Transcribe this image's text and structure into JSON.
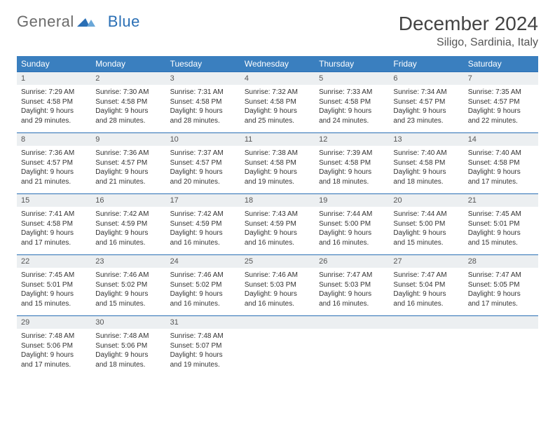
{
  "logo": {
    "word1": "General",
    "word2": "Blue"
  },
  "title": "December 2024",
  "location": "Siligo, Sardinia, Italy",
  "colors": {
    "header_bg": "#3a7fbf",
    "header_text": "#ffffff",
    "daynum_bg": "#eceff1",
    "row_border": "#2a6fb5",
    "body_text": "#333333",
    "logo_gray": "#6b6b6b",
    "logo_blue": "#2a6fb5"
  },
  "day_headers": [
    "Sunday",
    "Monday",
    "Tuesday",
    "Wednesday",
    "Thursday",
    "Friday",
    "Saturday"
  ],
  "weeks": [
    [
      {
        "n": "1",
        "sr": "Sunrise: 7:29 AM",
        "ss": "Sunset: 4:58 PM",
        "d1": "Daylight: 9 hours",
        "d2": "and 29 minutes."
      },
      {
        "n": "2",
        "sr": "Sunrise: 7:30 AM",
        "ss": "Sunset: 4:58 PM",
        "d1": "Daylight: 9 hours",
        "d2": "and 28 minutes."
      },
      {
        "n": "3",
        "sr": "Sunrise: 7:31 AM",
        "ss": "Sunset: 4:58 PM",
        "d1": "Daylight: 9 hours",
        "d2": "and 28 minutes."
      },
      {
        "n": "4",
        "sr": "Sunrise: 7:32 AM",
        "ss": "Sunset: 4:58 PM",
        "d1": "Daylight: 9 hours",
        "d2": "and 25 minutes."
      },
      {
        "n": "5",
        "sr": "Sunrise: 7:33 AM",
        "ss": "Sunset: 4:58 PM",
        "d1": "Daylight: 9 hours",
        "d2": "and 24 minutes."
      },
      {
        "n": "6",
        "sr": "Sunrise: 7:34 AM",
        "ss": "Sunset: 4:57 PM",
        "d1": "Daylight: 9 hours",
        "d2": "and 23 minutes."
      },
      {
        "n": "7",
        "sr": "Sunrise: 7:35 AM",
        "ss": "Sunset: 4:57 PM",
        "d1": "Daylight: 9 hours",
        "d2": "and 22 minutes."
      }
    ],
    [
      {
        "n": "8",
        "sr": "Sunrise: 7:36 AM",
        "ss": "Sunset: 4:57 PM",
        "d1": "Daylight: 9 hours",
        "d2": "and 21 minutes."
      },
      {
        "n": "9",
        "sr": "Sunrise: 7:36 AM",
        "ss": "Sunset: 4:57 PM",
        "d1": "Daylight: 9 hours",
        "d2": "and 21 minutes."
      },
      {
        "n": "10",
        "sr": "Sunrise: 7:37 AM",
        "ss": "Sunset: 4:57 PM",
        "d1": "Daylight: 9 hours",
        "d2": "and 20 minutes."
      },
      {
        "n": "11",
        "sr": "Sunrise: 7:38 AM",
        "ss": "Sunset: 4:58 PM",
        "d1": "Daylight: 9 hours",
        "d2": "and 19 minutes."
      },
      {
        "n": "12",
        "sr": "Sunrise: 7:39 AM",
        "ss": "Sunset: 4:58 PM",
        "d1": "Daylight: 9 hours",
        "d2": "and 18 minutes."
      },
      {
        "n": "13",
        "sr": "Sunrise: 7:40 AM",
        "ss": "Sunset: 4:58 PM",
        "d1": "Daylight: 9 hours",
        "d2": "and 18 minutes."
      },
      {
        "n": "14",
        "sr": "Sunrise: 7:40 AM",
        "ss": "Sunset: 4:58 PM",
        "d1": "Daylight: 9 hours",
        "d2": "and 17 minutes."
      }
    ],
    [
      {
        "n": "15",
        "sr": "Sunrise: 7:41 AM",
        "ss": "Sunset: 4:58 PM",
        "d1": "Daylight: 9 hours",
        "d2": "and 17 minutes."
      },
      {
        "n": "16",
        "sr": "Sunrise: 7:42 AM",
        "ss": "Sunset: 4:59 PM",
        "d1": "Daylight: 9 hours",
        "d2": "and 16 minutes."
      },
      {
        "n": "17",
        "sr": "Sunrise: 7:42 AM",
        "ss": "Sunset: 4:59 PM",
        "d1": "Daylight: 9 hours",
        "d2": "and 16 minutes."
      },
      {
        "n": "18",
        "sr": "Sunrise: 7:43 AM",
        "ss": "Sunset: 4:59 PM",
        "d1": "Daylight: 9 hours",
        "d2": "and 16 minutes."
      },
      {
        "n": "19",
        "sr": "Sunrise: 7:44 AM",
        "ss": "Sunset: 5:00 PM",
        "d1": "Daylight: 9 hours",
        "d2": "and 16 minutes."
      },
      {
        "n": "20",
        "sr": "Sunrise: 7:44 AM",
        "ss": "Sunset: 5:00 PM",
        "d1": "Daylight: 9 hours",
        "d2": "and 15 minutes."
      },
      {
        "n": "21",
        "sr": "Sunrise: 7:45 AM",
        "ss": "Sunset: 5:01 PM",
        "d1": "Daylight: 9 hours",
        "d2": "and 15 minutes."
      }
    ],
    [
      {
        "n": "22",
        "sr": "Sunrise: 7:45 AM",
        "ss": "Sunset: 5:01 PM",
        "d1": "Daylight: 9 hours",
        "d2": "and 15 minutes."
      },
      {
        "n": "23",
        "sr": "Sunrise: 7:46 AM",
        "ss": "Sunset: 5:02 PM",
        "d1": "Daylight: 9 hours",
        "d2": "and 15 minutes."
      },
      {
        "n": "24",
        "sr": "Sunrise: 7:46 AM",
        "ss": "Sunset: 5:02 PM",
        "d1": "Daylight: 9 hours",
        "d2": "and 16 minutes."
      },
      {
        "n": "25",
        "sr": "Sunrise: 7:46 AM",
        "ss": "Sunset: 5:03 PM",
        "d1": "Daylight: 9 hours",
        "d2": "and 16 minutes."
      },
      {
        "n": "26",
        "sr": "Sunrise: 7:47 AM",
        "ss": "Sunset: 5:03 PM",
        "d1": "Daylight: 9 hours",
        "d2": "and 16 minutes."
      },
      {
        "n": "27",
        "sr": "Sunrise: 7:47 AM",
        "ss": "Sunset: 5:04 PM",
        "d1": "Daylight: 9 hours",
        "d2": "and 16 minutes."
      },
      {
        "n": "28",
        "sr": "Sunrise: 7:47 AM",
        "ss": "Sunset: 5:05 PM",
        "d1": "Daylight: 9 hours",
        "d2": "and 17 minutes."
      }
    ],
    [
      {
        "n": "29",
        "sr": "Sunrise: 7:48 AM",
        "ss": "Sunset: 5:06 PM",
        "d1": "Daylight: 9 hours",
        "d2": "and 17 minutes."
      },
      {
        "n": "30",
        "sr": "Sunrise: 7:48 AM",
        "ss": "Sunset: 5:06 PM",
        "d1": "Daylight: 9 hours",
        "d2": "and 18 minutes."
      },
      {
        "n": "31",
        "sr": "Sunrise: 7:48 AM",
        "ss": "Sunset: 5:07 PM",
        "d1": "Daylight: 9 hours",
        "d2": "and 19 minutes."
      },
      null,
      null,
      null,
      null
    ]
  ]
}
